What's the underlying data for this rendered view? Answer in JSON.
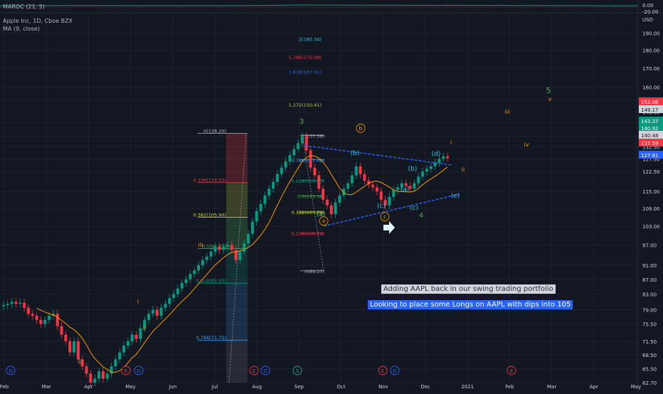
{
  "indicator_panel": {
    "label": "MAROC (21, 5)",
    "zero_label": "0.00",
    "secondary_label": "-20.00"
  },
  "legend": {
    "symbol": "Apple Inc, 1D, Cboe BZX",
    "ma": "MA (9, close)"
  },
  "axis": {
    "currency": "USD",
    "price_ticks": [
      190.0,
      180.0,
      170.0,
      160.0,
      154.0,
      148.0,
      143.0,
      137.0,
      132.5,
      127.5,
      122.5,
      115.0,
      109.0,
      103.0,
      97.0,
      91.0,
      87.0,
      83.0,
      79.0,
      75.5,
      71.5,
      68.5,
      65.5,
      62.7
    ],
    "time_ticks": [
      "Feb",
      "Mar",
      "Apr",
      "May",
      "Jun",
      "Jul",
      "Aug",
      "Sep",
      "Oct",
      "Nov",
      "Dec",
      "2021",
      "Feb",
      "Mar",
      "Apr",
      "May"
    ]
  },
  "price_badges": [
    {
      "text": "152.06",
      "color": "#f23645"
    },
    {
      "text": "149.17",
      "color": "#d1d4dc"
    },
    {
      "text": "143.37",
      "color": "#089981"
    },
    {
      "text": "140.92",
      "color": "#089981"
    },
    {
      "text": "140.48",
      "color": "#d1d4dc"
    },
    {
      "text": "137.59",
      "color": "#f23645"
    },
    {
      "text": "127.81",
      "color": "#2962ff"
    }
  ],
  "fib_projection_labels": [
    {
      "text": "2(185.34)",
      "color": "#26c6da",
      "value": 185.34
    },
    {
      "text": "1.786(175.08)",
      "color": "#f23645",
      "value": 175.08
    },
    {
      "text": "1.618(167.01)",
      "color": "#2962ff",
      "value": 167.01
    },
    {
      "text": "1.272(150.41)",
      "color": "#c0ca33",
      "value": 150.41
    }
  ],
  "fib_retracement_left": [
    {
      "text": "0(138.20)",
      "color": "#b2b5be",
      "value": 138.2
    },
    {
      "text": "0.236(118.25)",
      "color": "#f23645",
      "value": 118.25
    },
    {
      "text": "0.382(105.90)",
      "color": "#cddc39",
      "value": 105.9
    },
    {
      "text": "0.5(95.93)",
      "color": "#4caf50",
      "value": 95.93
    },
    {
      "text": "0.618(85.95)",
      "color": "#089981",
      "value": 85.95
    },
    {
      "text": "0.786(71.75)",
      "color": "#42a5f5",
      "value": 71.75
    }
  ],
  "fib_retracement_right": [
    {
      "text": "1(137.36)",
      "color": "#b2b5be",
      "value": 137.36
    },
    {
      "text": "0.786(127.09)",
      "color": "#42a5f5",
      "value": 127.09
    },
    {
      "text": "0.618(119.03)",
      "color": "#089981",
      "value": 119.03
    },
    {
      "text": "0.5(113.36)",
      "color": "#4caf50",
      "value": 113.36
    },
    {
      "text": "0.382(107.70)",
      "color": "#cddc39",
      "value": 107.7
    },
    {
      "text": "0.236(100.70)",
      "color": "#f23645",
      "value": 100.7
    },
    {
      "text": "0(89.37)",
      "color": "#b2b5be",
      "value": 89.37
    }
  ],
  "wave_labels": [
    {
      "text": "3",
      "color": "#4caf50"
    },
    {
      "text": "5",
      "color": "#4caf50"
    },
    {
      "text": "4",
      "color": "#4caf50"
    },
    {
      "text": "1",
      "color": "#4caf50"
    },
    {
      "text": "iii",
      "color": "#ff9800"
    },
    {
      "text": "v",
      "color": "#ff9800"
    },
    {
      "text": "iv",
      "color": "#ff9800"
    },
    {
      "text": "i",
      "color": "#ff9800"
    },
    {
      "text": "ii",
      "color": "#ff9800"
    },
    {
      "text": "b",
      "color": "#ff9800"
    },
    {
      "text": "a",
      "color": "#ff9800"
    },
    {
      "text": "c",
      "color": "#ff9800"
    },
    {
      "text": "(b)",
      "color": "#26c6da"
    },
    {
      "text": "(a)",
      "color": "#26c6da"
    },
    {
      "text": "(c)",
      "color": "#26c6da"
    },
    {
      "text": "(d)",
      "color": "#26c6da"
    },
    {
      "text": "(e)",
      "color": "#26c6da"
    },
    {
      "text": "(b)",
      "color": "#26c6da"
    },
    {
      "text": "(a)",
      "color": "#26c6da"
    },
    {
      "text": "(c)",
      "color": "#26c6da"
    },
    {
      "text": "iii",
      "color": "#ff9800"
    },
    {
      "text": "i",
      "color": "#ff9800"
    },
    {
      "text": "ii",
      "color": "#ff9800"
    }
  ],
  "event_markers": [
    "D",
    "E",
    "D",
    "E",
    "D",
    "S",
    "E",
    "D",
    "E"
  ],
  "annotations": {
    "note1": "Adding AAPL back in our swing trading portfolio",
    "note2": "Looking to place some Longs on AAPL with dips into 105"
  },
  "colors": {
    "up": "#089981",
    "down": "#f23645",
    "ma": "#ff9800",
    "channel": "#2962ff"
  },
  "chart_data": {
    "type": "candlestick",
    "title": "Apple Inc, 1D, Cboe BZX",
    "ylabel": "USD",
    "ylim": [
      62.7,
      195
    ],
    "log_scale": true,
    "grid": true,
    "series": [
      {
        "name": "Apple Inc, 1D, Cboe BZX",
        "values": [
          [
            79.9,
            80.2
          ],
          [
            80.2,
            80.5
          ],
          [
            80.5,
            81.0
          ],
          [
            81.0,
            80.5
          ],
          [
            80.5,
            80.8
          ],
          [
            80.8,
            79.5
          ],
          [
            79.5,
            78.0
          ],
          [
            78.0,
            77.5
          ],
          [
            77.5,
            76.5
          ],
          [
            76.5,
            75.5
          ],
          [
            75.5,
            76.5
          ],
          [
            76.5,
            77.5
          ],
          [
            77.5,
            78.0
          ],
          [
            78.0,
            75.0
          ],
          [
            75.0,
            73.0
          ],
          [
            73.0,
            71.5
          ],
          [
            71.5,
            69.0
          ],
          [
            69.0,
            71.5
          ],
          [
            71.5,
            67.5
          ],
          [
            67.5,
            66.0
          ],
          [
            66.0,
            64.5
          ],
          [
            64.5,
            62.7
          ],
          [
            62.7,
            63.5
          ],
          [
            63.5,
            65.0
          ],
          [
            65.0,
            63.5
          ],
          [
            63.5,
            64.5
          ],
          [
            64.5,
            66.0
          ],
          [
            66.0,
            67.5
          ],
          [
            67.5,
            69.0
          ],
          [
            69.0,
            70.5
          ],
          [
            70.5,
            71.5
          ],
          [
            71.5,
            73.0
          ],
          [
            73.0,
            72.0
          ],
          [
            72.0,
            74.5
          ],
          [
            74.5,
            76.5
          ],
          [
            76.5,
            78.0
          ],
          [
            78.0,
            79.0
          ],
          [
            79.0,
            77.5
          ],
          [
            77.5,
            79.5
          ],
          [
            79.5,
            80.5
          ],
          [
            80.5,
            82.0
          ],
          [
            82.0,
            83.0
          ],
          [
            83.0,
            84.5
          ],
          [
            84.5,
            86.0
          ],
          [
            86.0,
            87.0
          ],
          [
            87.0,
            88.5
          ],
          [
            88.5,
            89.5
          ],
          [
            89.5,
            91.0
          ],
          [
            91.0,
            92.5
          ],
          [
            92.5,
            93.5
          ],
          [
            93.5,
            95.0
          ],
          [
            95.0,
            96.5
          ],
          [
            96.5,
            95.5
          ],
          [
            95.5,
            96.5
          ],
          [
            96.5,
            97.0
          ],
          [
            97.0,
            95.5
          ],
          [
            95.5,
            92.5
          ],
          [
            92.5,
            95.0
          ],
          [
            95.0,
            97.5
          ],
          [
            97.5,
            100.5
          ],
          [
            100.5,
            104.5
          ],
          [
            104.5,
            108.0
          ],
          [
            108.0,
            110.5
          ],
          [
            110.5,
            113.5
          ],
          [
            113.5,
            116.0
          ],
          [
            116.0,
            118.5
          ],
          [
            118.5,
            121.5
          ],
          [
            121.5,
            124.0
          ],
          [
            124.0,
            126.5
          ],
          [
            126.5,
            129.0
          ],
          [
            129.0,
            131.5
          ],
          [
            131.5,
            134.0
          ],
          [
            134.0,
            137.0
          ],
          [
            137.0,
            131.0
          ],
          [
            131.0,
            124.0
          ],
          [
            124.0,
            121.0
          ],
          [
            121.0,
            116.0
          ],
          [
            116.0,
            112.0
          ],
          [
            112.0,
            110.0
          ],
          [
            110.0,
            107.0
          ],
          [
            107.0,
            111.0
          ],
          [
            111.0,
            113.5
          ],
          [
            113.5,
            116.0
          ],
          [
            116.0,
            118.0
          ],
          [
            118.0,
            121.0
          ],
          [
            121.0,
            124.5
          ],
          [
            124.5,
            121.5
          ],
          [
            121.5,
            119.0
          ],
          [
            119.0,
            117.5
          ],
          [
            117.5,
            116.5
          ],
          [
            116.5,
            115.0
          ],
          [
            115.0,
            112.0
          ],
          [
            112.0,
            110.0
          ],
          [
            110.0,
            113.0
          ],
          [
            113.0,
            115.5
          ],
          [
            115.5,
            116.5
          ],
          [
            116.5,
            118.0
          ],
          [
            118.0,
            117.0
          ],
          [
            117.0,
            116.0
          ],
          [
            116.0,
            118.0
          ],
          [
            118.0,
            120.5
          ],
          [
            120.5,
            122.5
          ],
          [
            122.5,
            123.5
          ],
          [
            123.5,
            124.5
          ],
          [
            124.5,
            126.0
          ],
          [
            126.0,
            127.5
          ],
          [
            127.5,
            128.5
          ],
          [
            128.5,
            127.8
          ]
        ]
      }
    ],
    "ma_period": 9,
    "time_range": [
      "Feb 2020",
      "May 2021"
    ]
  }
}
